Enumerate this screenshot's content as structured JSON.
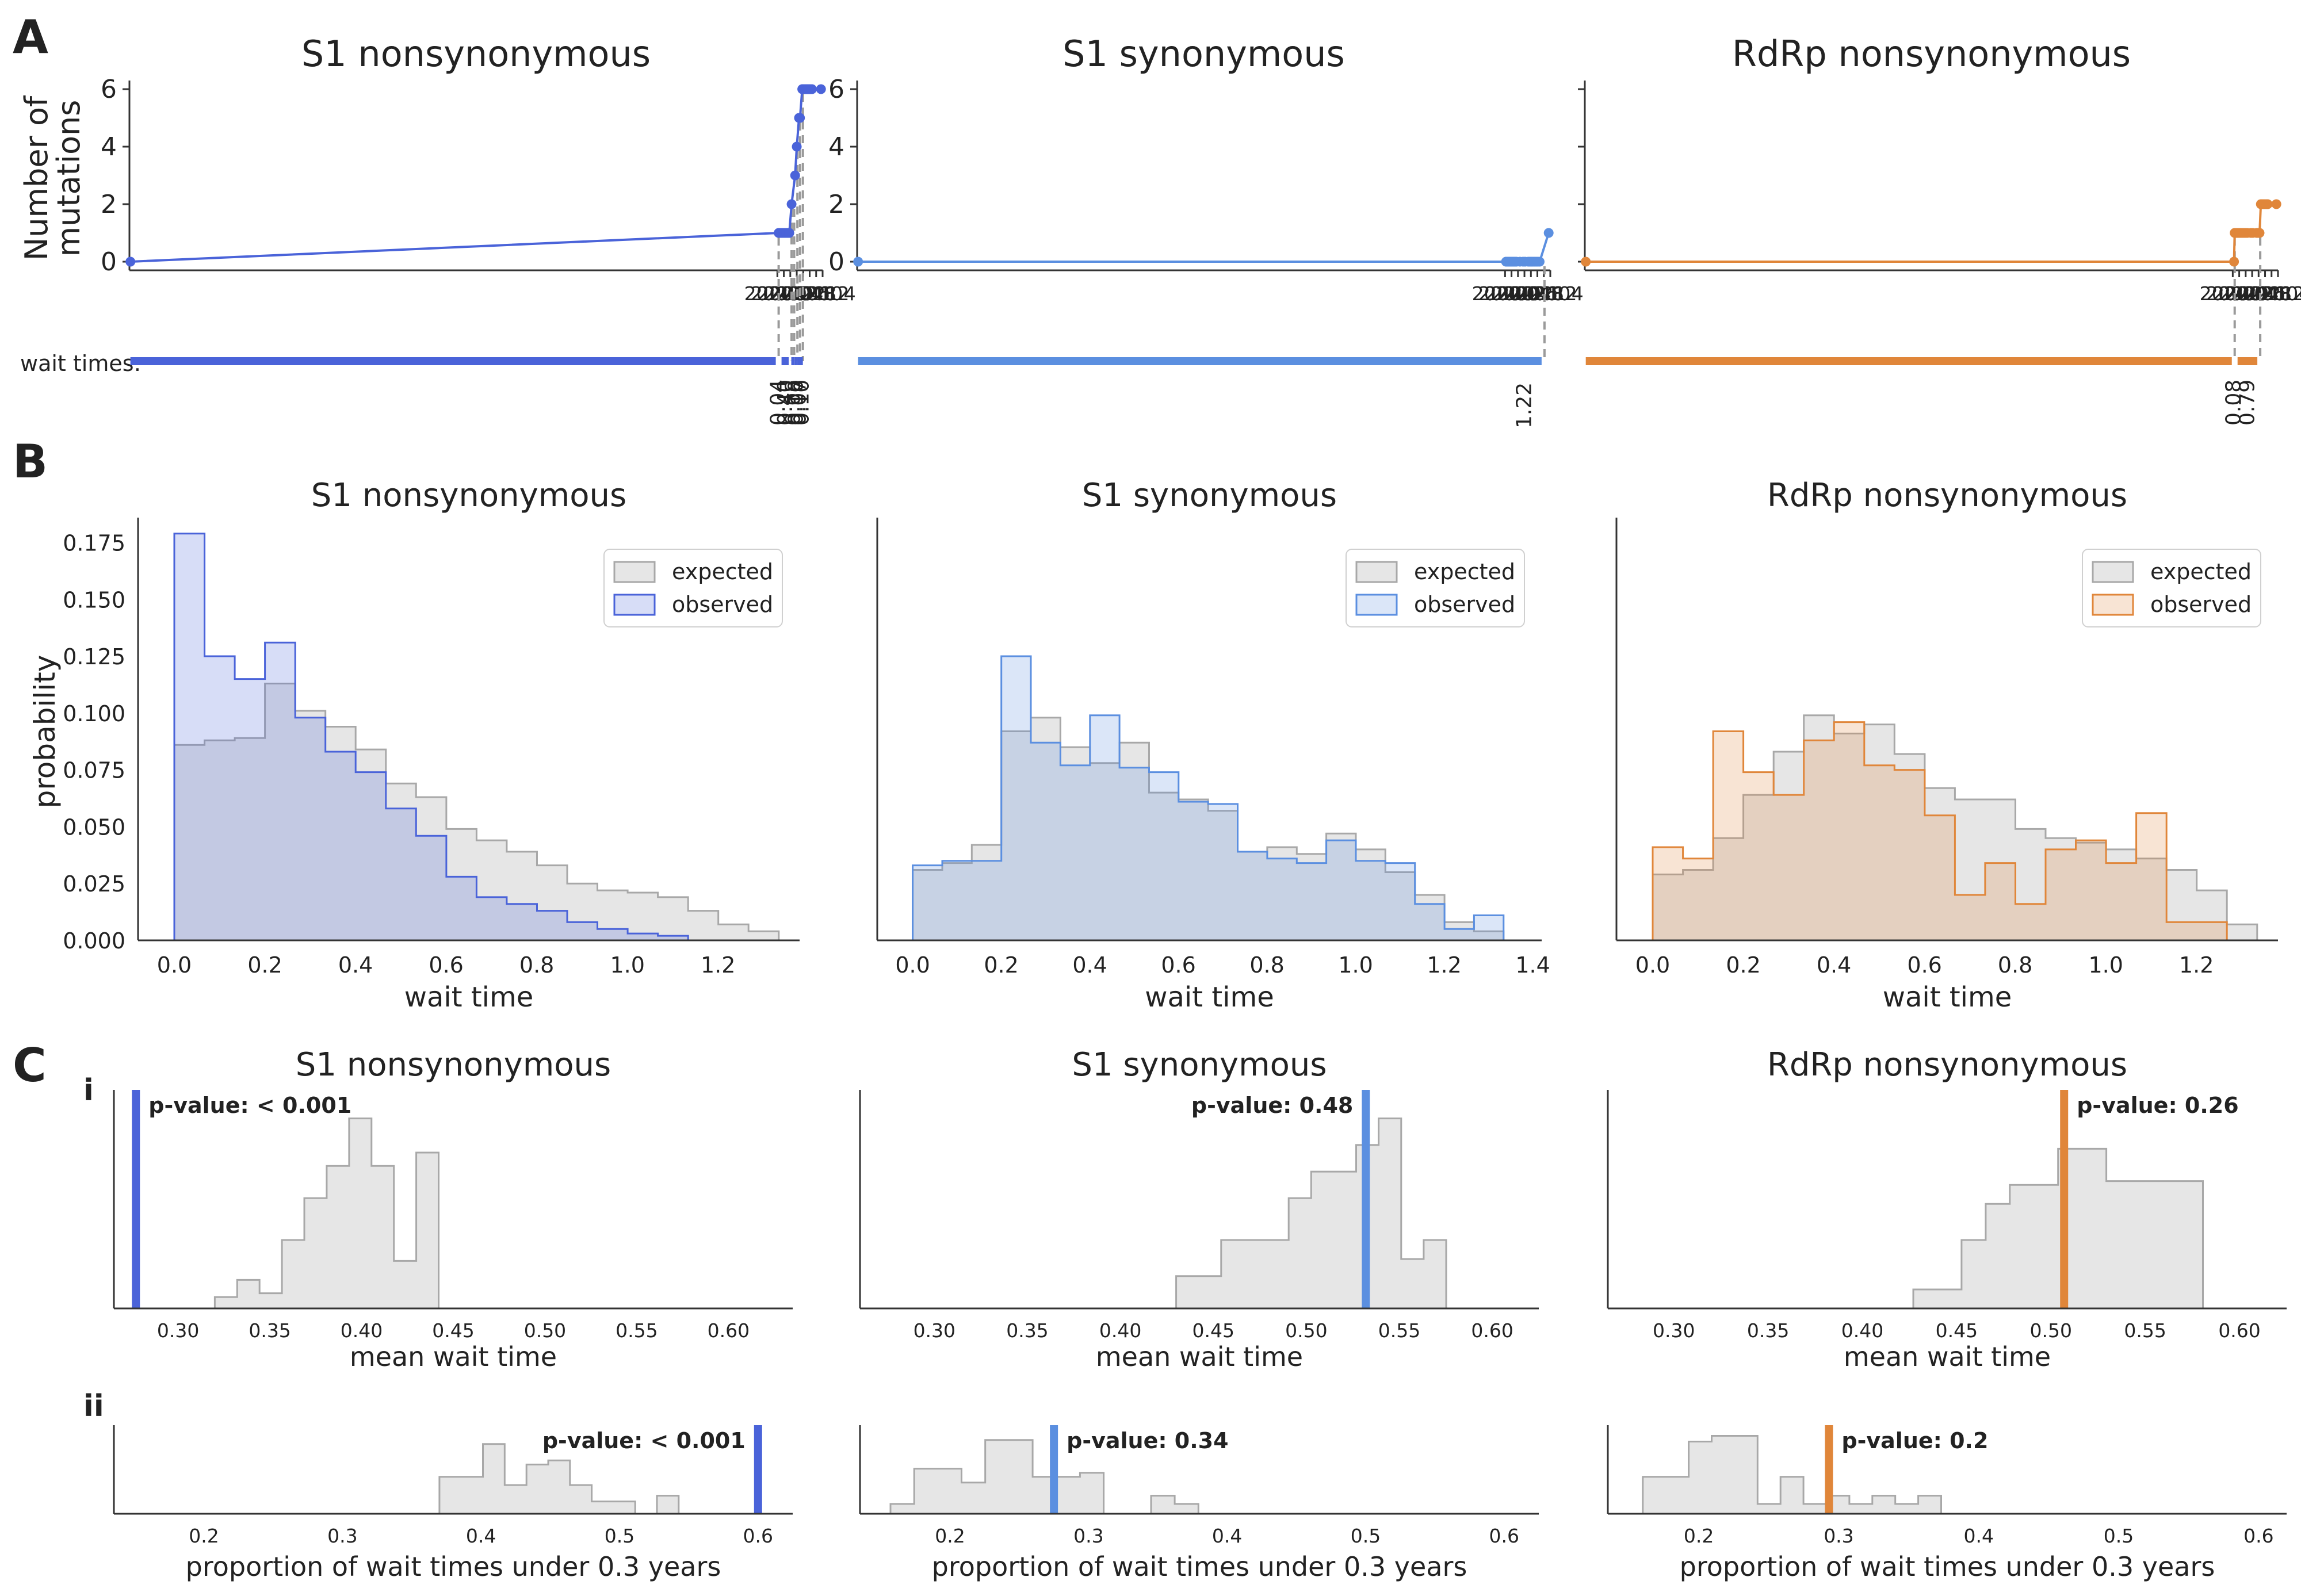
{
  "panel_letters": {
    "a": "A",
    "b": "B",
    "c": "C",
    "ci": "i",
    "cii": "ii"
  },
  "colors": {
    "blue": "#4a63d9",
    "lightblue": "#5b8fe0",
    "orange": "#e0863a",
    "grey_fill": "#e6e6e6",
    "grey_line": "#a8a8a8",
    "dash": "#9a9a9a"
  },
  "section_a": {
    "ylabel_line1": "Number of",
    "ylabel_line2": "mutations",
    "wait_label": "wait times:"
  },
  "section_b": {
    "ylabel": "probability",
    "legend": {
      "expected": "expected",
      "observed": "observed"
    }
  },
  "chart_data": [
    {
      "type": "line",
      "id": "A1",
      "title": "S1 nonsynonymous",
      "color_key": "blue",
      "xlim": [
        1999.95,
        2021.4
      ],
      "ylim": [
        -0.3,
        6.3
      ],
      "xticks": [
        "2020.0",
        "2020.2",
        "2020.4",
        "2020.6",
        "2020.8",
        "2021.0",
        "2021.2",
        "2021.4"
      ],
      "yticks": [
        "0",
        "2",
        "4",
        "6"
      ],
      "x": [
        1999.98,
        2020.04,
        2020.06,
        2020.08,
        2020.1,
        2020.12,
        2020.14,
        2020.16,
        2020.18,
        2020.2,
        2020.22,
        2020.24,
        2020.26,
        2020.28,
        2020.3,
        2020.32,
        2020.34,
        2020.36,
        2020.37,
        2020.44,
        2020.55,
        2020.6,
        2020.67,
        2020.7,
        2020.77,
        2020.79,
        2020.82,
        2020.86,
        2020.9,
        2020.93,
        2020.97,
        2021.01,
        2021.07,
        2021.35
      ],
      "y": [
        0,
        1,
        1,
        1,
        1,
        1,
        1,
        1,
        1,
        1,
        1,
        1,
        1,
        1,
        1,
        1,
        1,
        1,
        1,
        2,
        3,
        4,
        5,
        5,
        6,
        6,
        6,
        6,
        6,
        6,
        6,
        6,
        6,
        6
      ],
      "wait_times": [
        "0.04",
        "0.40",
        "0.08",
        "0.10",
        "0.07",
        "0.10"
      ],
      "wait_boundaries": [
        2020.04,
        2020.44,
        2020.52,
        2020.62,
        2020.7,
        2020.79
      ]
    },
    {
      "type": "line",
      "id": "A2",
      "title": "S1 synonymous",
      "color_key": "lightblue",
      "xlim": [
        1999.95,
        2021.4
      ],
      "ylim": [
        -0.3,
        6.3
      ],
      "xticks": [
        "2020.0",
        "2020.2",
        "2020.4",
        "2020.6",
        "2020.8",
        "2021.0",
        "2021.2",
        "2021.4"
      ],
      "yticks": [
        "0",
        "2",
        "4",
        "6"
      ],
      "x": [
        1999.98,
        2020.03,
        2020.05,
        2020.07,
        2020.09,
        2020.11,
        2020.13,
        2020.15,
        2020.17,
        2020.19,
        2020.21,
        2020.23,
        2020.25,
        2020.27,
        2020.29,
        2020.31,
        2020.33,
        2020.35,
        2020.46,
        2020.56,
        2020.62,
        2020.72,
        2020.76,
        2020.79,
        2020.82,
        2020.86,
        2020.91,
        2020.96,
        2021.01,
        2021.07,
        2021.35
      ],
      "y": [
        0,
        0,
        0,
        0,
        0,
        0,
        0,
        0,
        0,
        0,
        0,
        0,
        0,
        0,
        0,
        0,
        0,
        0,
        0,
        0,
        0,
        0,
        0,
        0,
        0,
        0,
        0,
        0,
        0,
        0,
        1
      ],
      "wait_times": [
        "1.22"
      ],
      "wait_boundaries": [
        1999.98,
        2021.22
      ]
    },
    {
      "type": "line",
      "id": "A3",
      "title": "RdRp nonsynonymous",
      "color_key": "orange",
      "xlim": [
        1999.95,
        2021.4
      ],
      "ylim": [
        -0.3,
        6.3
      ],
      "xticks": [
        "2020.0",
        "2020.2",
        "2020.4",
        "2020.6",
        "2020.8",
        "2021.0",
        "2021.2",
        "2021.4"
      ],
      "yticks": [],
      "x": [
        1999.98,
        2020.04,
        2020.06,
        2020.08,
        2020.1,
        2020.12,
        2020.14,
        2020.16,
        2020.18,
        2020.2,
        2020.22,
        2020.24,
        2020.26,
        2020.28,
        2020.3,
        2020.32,
        2020.34,
        2020.36,
        2020.4,
        2020.45,
        2020.56,
        2020.62,
        2020.74,
        2020.77,
        2020.8,
        2020.83,
        2020.87,
        2020.9,
        2020.94,
        2020.99,
        2021.04,
        2021.08,
        2021.35
      ],
      "y": [
        0,
        0,
        1,
        1,
        1,
        1,
        1,
        1,
        1,
        1,
        1,
        1,
        1,
        1,
        1,
        1,
        1,
        1,
        1,
        1,
        1,
        1,
        1,
        1,
        1,
        1,
        2,
        2,
        2,
        2,
        2,
        2,
        2
      ],
      "wait_times": [
        "0.08",
        "0.79"
      ],
      "wait_boundaries": [
        2020.06,
        2020.85
      ]
    },
    {
      "type": "histogram",
      "id": "B1",
      "title": "S1 nonsynonymous",
      "xlabel": "wait time",
      "ylabel": "probability",
      "color_key": "blue",
      "xlim": [
        -0.08,
        1.38
      ],
      "ylim": [
        0,
        0.186
      ],
      "xticks": [
        "0.0",
        "0.2",
        "0.4",
        "0.6",
        "0.8",
        "1.0",
        "1.2"
      ],
      "yticks": [
        "0.000",
        "0.025",
        "0.050",
        "0.075",
        "0.100",
        "0.125",
        "0.150",
        "0.175"
      ],
      "bin_start": 0.0,
      "bin_width": 0.0667,
      "expected": [
        0.086,
        0.088,
        0.089,
        0.113,
        0.101,
        0.094,
        0.084,
        0.069,
        0.063,
        0.049,
        0.044,
        0.039,
        0.033,
        0.025,
        0.022,
        0.021,
        0.019,
        0.013,
        0.007,
        0.004
      ],
      "observed": [
        0.179,
        0.125,
        0.115,
        0.131,
        0.098,
        0.083,
        0.074,
        0.058,
        0.046,
        0.028,
        0.019,
        0.016,
        0.013,
        0.008,
        0.005,
        0.003,
        0.002,
        0.0,
        0.0,
        0.0
      ]
    },
    {
      "type": "histogram",
      "id": "B2",
      "title": "S1 synonymous",
      "xlabel": "wait time",
      "ylabel": "",
      "color_key": "lightblue",
      "xlim": [
        -0.08,
        1.42
      ],
      "ylim": [
        0,
        0.186
      ],
      "xticks": [
        "0.0",
        "0.2",
        "0.4",
        "0.6",
        "0.8",
        "1.0",
        "1.2",
        "1.4"
      ],
      "yticks": [],
      "bin_start": 0.0,
      "bin_width": 0.0667,
      "expected": [
        0.031,
        0.034,
        0.042,
        0.092,
        0.098,
        0.085,
        0.078,
        0.087,
        0.065,
        0.062,
        0.057,
        0.039,
        0.041,
        0.038,
        0.047,
        0.04,
        0.03,
        0.02,
        0.008,
        0.004
      ],
      "observed": [
        0.033,
        0.035,
        0.035,
        0.125,
        0.087,
        0.077,
        0.099,
        0.076,
        0.074,
        0.061,
        0.06,
        0.039,
        0.036,
        0.034,
        0.044,
        0.035,
        0.034,
        0.016,
        0.005,
        0.011
      ]
    },
    {
      "type": "histogram",
      "id": "B3",
      "title": "RdRp nonsynonymous",
      "xlabel": "wait time",
      "ylabel": "",
      "color_key": "orange",
      "xlim": [
        -0.08,
        1.38
      ],
      "ylim": [
        0,
        0.186
      ],
      "xticks": [
        "0.0",
        "0.2",
        "0.4",
        "0.6",
        "0.8",
        "1.0",
        "1.2"
      ],
      "yticks": [],
      "bin_start": 0.0,
      "bin_width": 0.0667,
      "expected": [
        0.029,
        0.031,
        0.045,
        0.064,
        0.083,
        0.099,
        0.091,
        0.095,
        0.082,
        0.067,
        0.062,
        0.062,
        0.049,
        0.045,
        0.043,
        0.04,
        0.036,
        0.031,
        0.022,
        0.007
      ],
      "observed": [
        0.041,
        0.036,
        0.092,
        0.074,
        0.064,
        0.088,
        0.096,
        0.077,
        0.075,
        0.055,
        0.02,
        0.034,
        0.016,
        0.04,
        0.044,
        0.034,
        0.056,
        0.008,
        0.008,
        0.0
      ]
    },
    {
      "type": "histogram",
      "id": "Ci1",
      "title": "S1 nonsynonymous",
      "xlabel": "mean wait time",
      "color_key": "blue",
      "xlim": [
        0.265,
        0.635
      ],
      "ylim": [
        0,
        1.15
      ],
      "xticks": [
        "0.30",
        "0.35",
        "0.40",
        "0.45",
        "0.50",
        "0.55",
        "0.60"
      ],
      "bin_start": 0.32,
      "bin_width": 0.0122,
      "expected": [
        0.06,
        0.15,
        0.08,
        0.36,
        0.58,
        0.75,
        1.0,
        0.75,
        0.25,
        0.82
      ],
      "observed_value": 0.277,
      "pvalue_label": "p-value: < 0.001",
      "label_side": "right"
    },
    {
      "type": "histogram",
      "id": "Ci2",
      "title": "S1 synonymous",
      "xlabel": "mean wait time",
      "color_key": "lightblue",
      "xlim": [
        0.26,
        0.625
      ],
      "ylim": [
        0,
        1.15
      ],
      "xticks": [
        "0.30",
        "0.35",
        "0.40",
        "0.45",
        "0.50",
        "0.55",
        "0.60"
      ],
      "bin_start": 0.43,
      "bin_width": 0.0121,
      "expected": [
        0.17,
        0.17,
        0.36,
        0.36,
        0.36,
        0.58,
        0.72,
        0.72,
        0.86,
        1.0,
        0.26,
        0.36
      ],
      "observed_value": 0.532,
      "pvalue_label": "p-value: 0.48",
      "label_side": "left"
    },
    {
      "type": "histogram",
      "id": "Ci3",
      "title": "RdRp nonsynonymous",
      "xlabel": "mean wait time",
      "color_key": "orange",
      "xlim": [
        0.265,
        0.625
      ],
      "ylim": [
        0,
        1.15
      ],
      "xticks": [
        "0.30",
        "0.35",
        "0.40",
        "0.45",
        "0.50",
        "0.55",
        "0.60"
      ],
      "bin_start": 0.427,
      "bin_width": 0.0128,
      "expected": [
        0.1,
        0.1,
        0.36,
        0.55,
        0.65,
        0.65,
        0.84,
        0.84,
        0.67,
        0.67,
        0.67,
        0.67
      ],
      "observed_value": 0.507,
      "pvalue_label": "p-value: 0.26",
      "label_side": "right"
    },
    {
      "type": "histogram",
      "id": "Cii1",
      "title": "",
      "xlabel": "proportion of wait times under 0.3 years",
      "color_key": "blue",
      "xlim": [
        0.135,
        0.625
      ],
      "ylim": [
        0,
        1.08
      ],
      "xticks": [
        "0.2",
        "0.3",
        "0.4",
        "0.5",
        "0.6"
      ],
      "bin_start": 0.37,
      "bin_width": 0.0157,
      "expected": [
        0.45,
        0.45,
        0.85,
        0.35,
        0.6,
        0.65,
        0.35,
        0.15,
        0.15,
        0.0,
        0.22,
        0.0
      ],
      "observed_value": 0.6,
      "pvalue_label": "p-value: < 0.001",
      "label_side": "left"
    },
    {
      "type": "histogram",
      "id": "Cii2",
      "title": "",
      "xlabel": "proportion of wait times under 0.3 years",
      "color_key": "lightblue",
      "xlim": [
        0.135,
        0.625
      ],
      "ylim": [
        0,
        1.08
      ],
      "xticks": [
        "0.2",
        "0.3",
        "0.4",
        "0.5",
        "0.6"
      ],
      "bin_start": 0.157,
      "bin_width": 0.0171,
      "expected": [
        0.12,
        0.55,
        0.55,
        0.38,
        0.9,
        0.9,
        0.45,
        0.45,
        0.5,
        0.0,
        0.0,
        0.22,
        0.12
      ],
      "observed_value": 0.275,
      "pvalue_label": "p-value: 0.34",
      "label_side": "right"
    },
    {
      "type": "histogram",
      "id": "Cii3",
      "title": "",
      "xlabel": "proportion of wait times under 0.3 years",
      "color_key": "orange",
      "xlim": [
        0.135,
        0.62
      ],
      "ylim": [
        0,
        1.08
      ],
      "xticks": [
        "0.2",
        "0.3",
        "0.4",
        "0.5",
        "0.6"
      ],
      "bin_start": 0.16,
      "bin_width": 0.0164,
      "expected": [
        0.45,
        0.45,
        0.88,
        0.95,
        0.95,
        0.12,
        0.45,
        0.12,
        0.22,
        0.12,
        0.22,
        0.12,
        0.22
      ],
      "observed_value": 0.293,
      "pvalue_label": "p-value: 0.2",
      "label_side": "right"
    }
  ]
}
